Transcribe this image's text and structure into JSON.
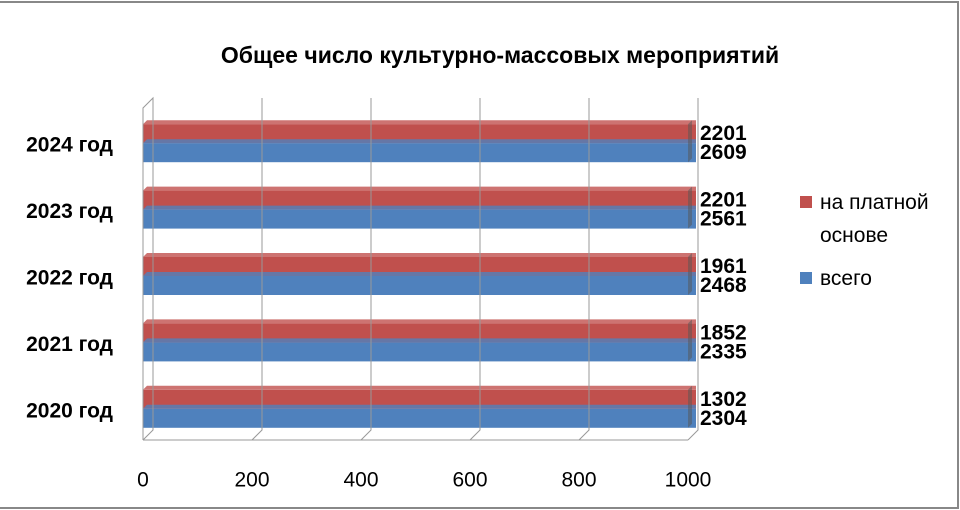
{
  "chart_data": {
    "type": "hbar",
    "title": "Общее число культурно-массовых мероприятий",
    "categories": [
      "2020 год",
      "2021 год",
      "2022 год",
      "2023 год",
      "2024 год"
    ],
    "series": [
      {
        "name": "на платной основе",
        "color": "#c0504d",
        "values": [
          1302,
          1852,
          1961,
          2201,
          2201
        ]
      },
      {
        "name": "всего",
        "color": "#4f81bd",
        "values": [
          2304,
          2335,
          2468,
          2561,
          2609
        ]
      }
    ],
    "xlim": [
      0,
      1000
    ],
    "xticks": [
      0,
      200,
      400,
      600,
      800,
      1000
    ],
    "grid": true,
    "legend": "right"
  }
}
